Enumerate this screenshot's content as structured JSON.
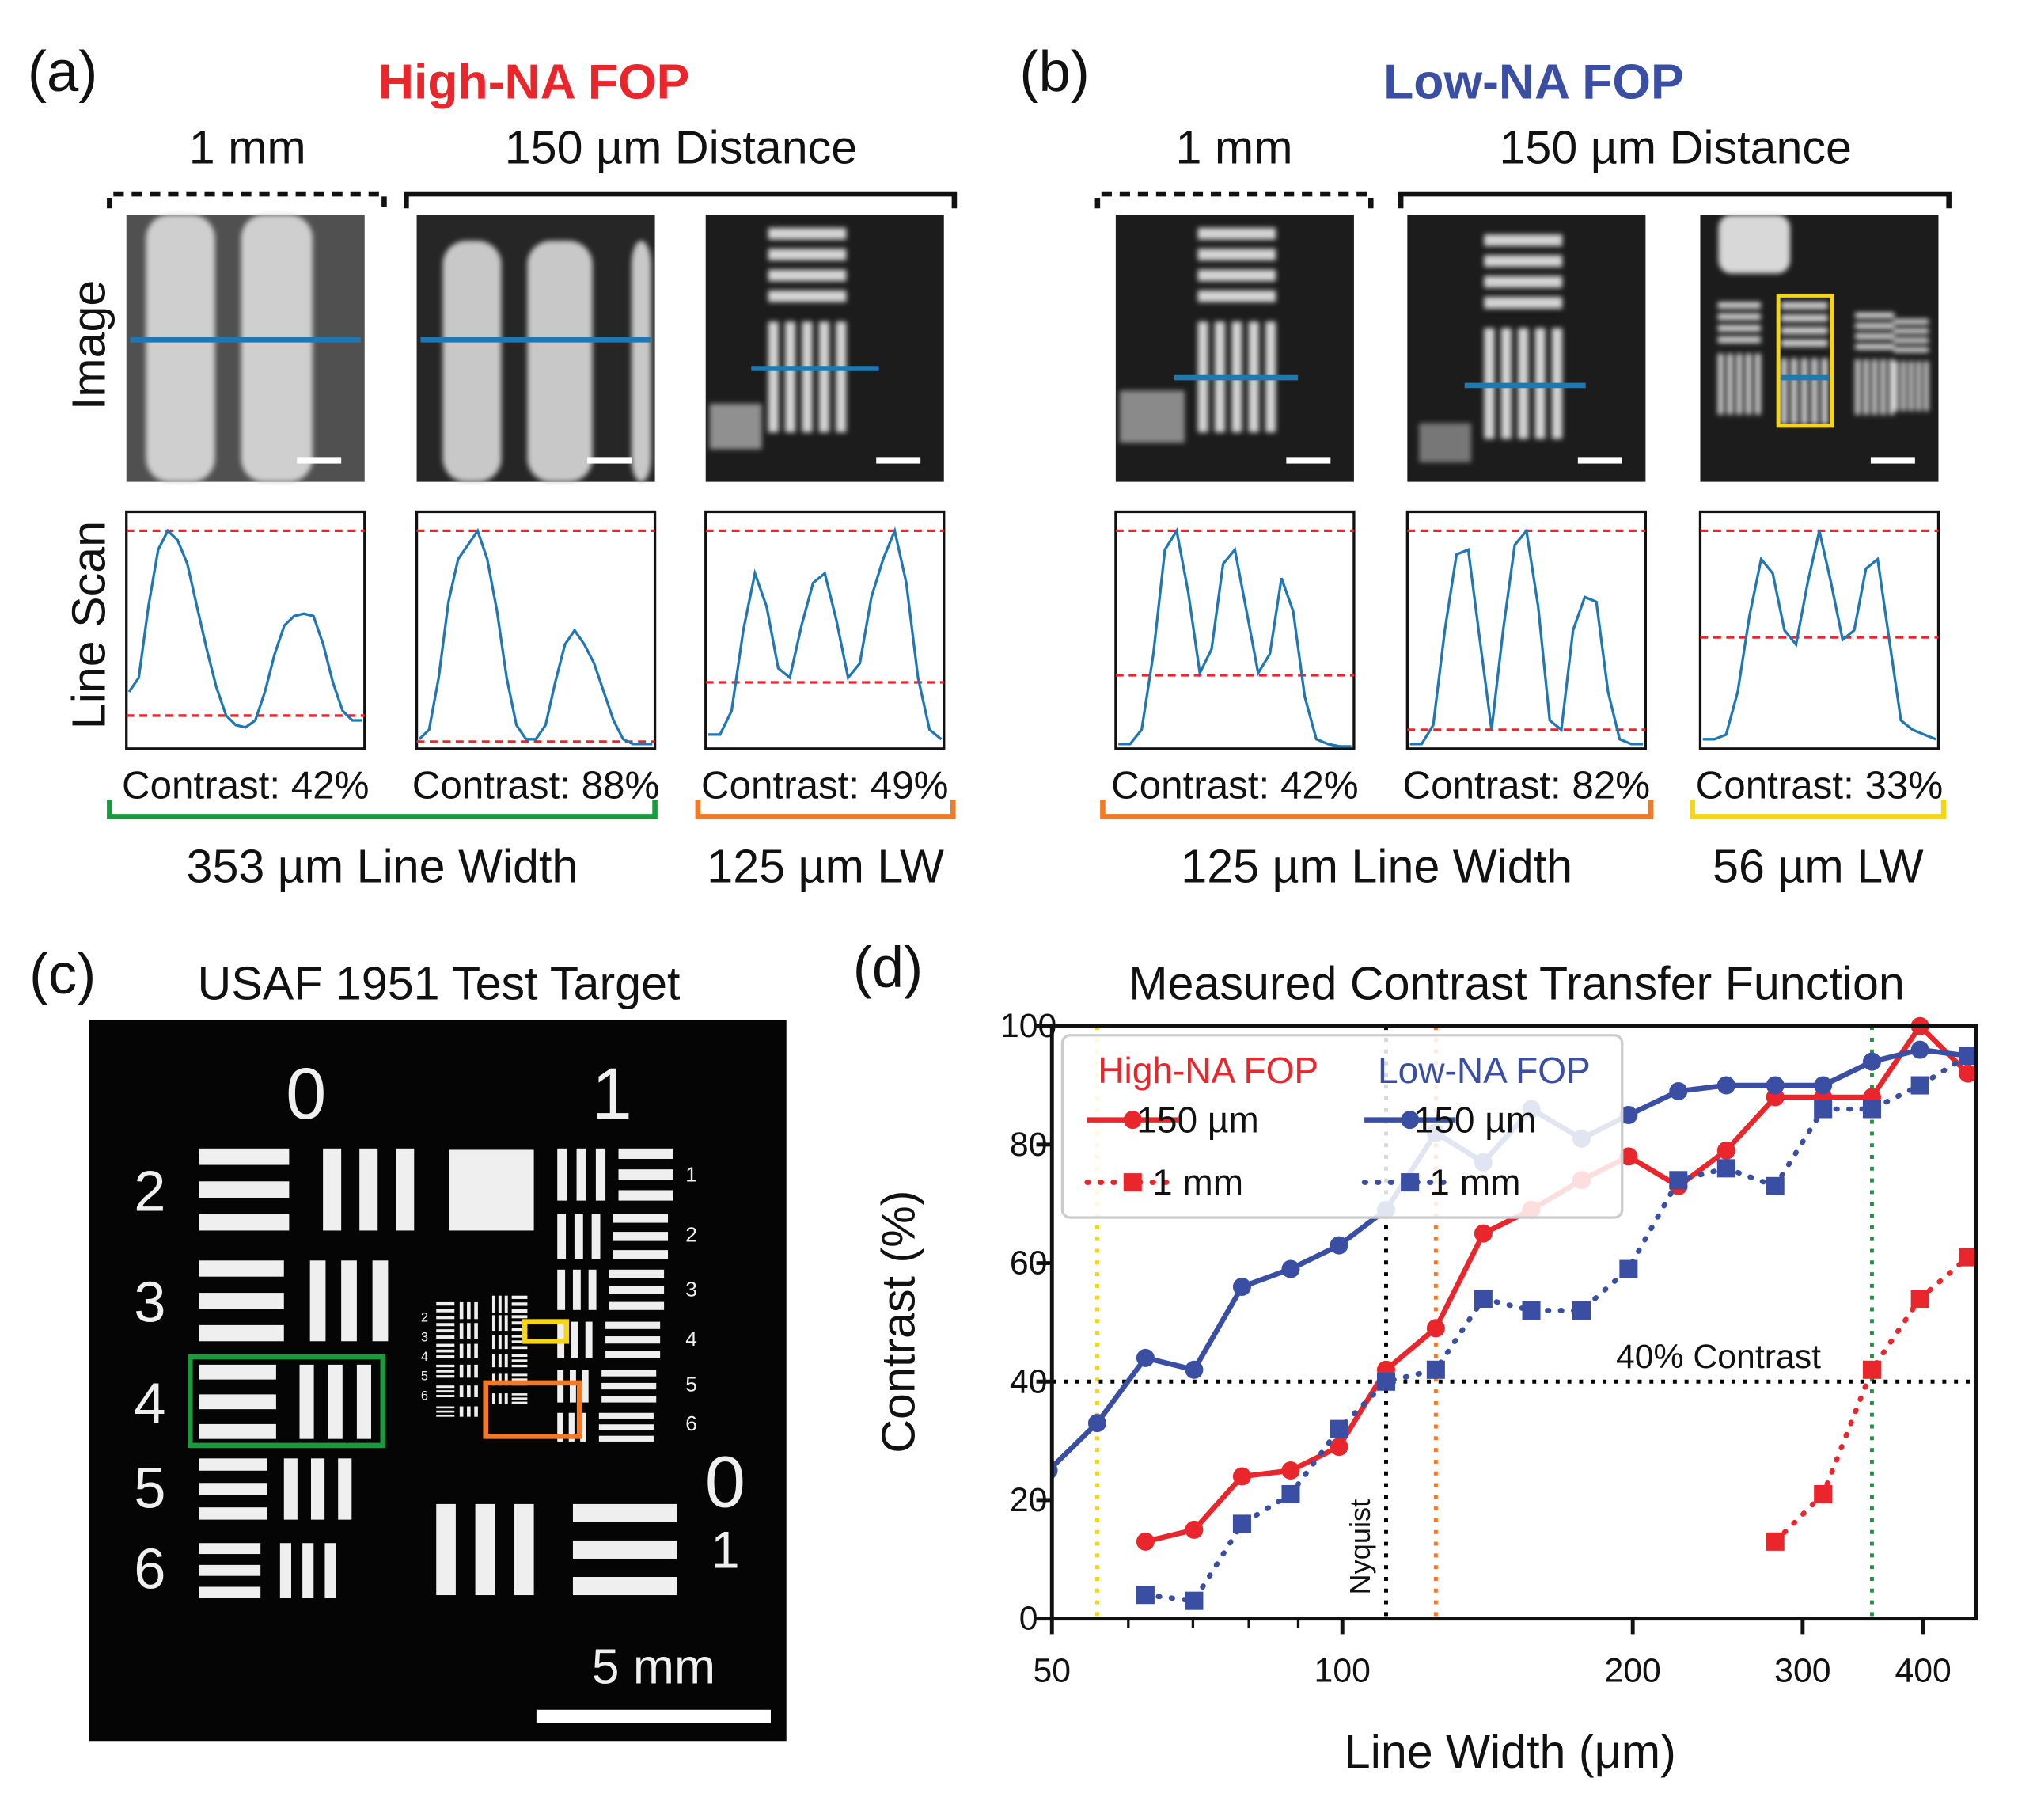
{
  "panels": [
    {
      "label": "(a)",
      "title": "High-NA FOP",
      "color": "#e8262b",
      "distance_labels": [
        "1 mm",
        "150 µm Distance"
      ],
      "row_labels": [
        "Image",
        "Line Scan"
      ],
      "scans": [
        {
          "values": [
            24,
            30,
            60,
            84,
            92,
            88,
            78,
            60,
            42,
            26,
            14,
            10,
            9,
            12,
            24,
            40,
            52,
            56,
            57,
            56,
            44,
            28,
            16,
            12,
            12
          ],
          "max": 92,
          "min": 14,
          "contrast": "Contrast: 42%"
        },
        {
          "values": [
            4,
            8,
            30,
            62,
            80,
            86,
            92,
            80,
            58,
            30,
            10,
            4,
            4,
            10,
            28,
            44,
            50,
            44,
            36,
            24,
            12,
            4,
            2,
            2,
            2
          ],
          "max": 92,
          "min": 3,
          "contrast": "Contrast: 88%"
        },
        {
          "values": [
            6,
            6,
            16,
            50,
            74,
            60,
            34,
            30,
            52,
            70,
            74,
            54,
            30,
            36,
            64,
            80,
            92,
            70,
            30,
            8,
            4
          ],
          "max": 92,
          "min": 28,
          "contrast": "Contrast: 49%"
        }
      ],
      "groups": [
        {
          "label": "353 µm Line Width",
          "color": "#1a9a3c"
        },
        {
          "label": "125 µm LW",
          "color": "#f07a28"
        }
      ]
    },
    {
      "label": "(b)",
      "title": "Low-NA FOP",
      "color": "#3a4fa3",
      "distance_labels": [
        "1 mm",
        "150 µm Distance"
      ],
      "scans": [
        {
          "values": [
            2,
            2,
            8,
            40,
            84,
            92,
            66,
            32,
            42,
            78,
            84,
            58,
            32,
            40,
            72,
            58,
            22,
            4,
            2,
            1,
            1
          ],
          "max": 92,
          "min": 31,
          "contrast": "Contrast: 42%"
        },
        {
          "values": [
            2,
            2,
            10,
            50,
            82,
            84,
            46,
            8,
            50,
            86,
            92,
            60,
            12,
            8,
            50,
            64,
            62,
            24,
            4,
            2,
            2
          ],
          "max": 92,
          "min": 8,
          "contrast": "Contrast: 82%"
        },
        {
          "values": [
            4,
            4,
            6,
            24,
            56,
            80,
            74,
            50,
            44,
            70,
            92,
            70,
            46,
            50,
            76,
            80,
            46,
            12,
            8,
            6,
            4
          ],
          "max": 92,
          "min": 47,
          "contrast": "Contrast: 33%"
        }
      ],
      "groups": [
        {
          "label": "125 µm Line Width",
          "color": "#f07a28"
        },
        {
          "label": "56 µm LW",
          "color": "#f5d518"
        }
      ]
    }
  ],
  "target": {
    "label": "(c)",
    "title": "USAF 1951 Test Target",
    "scale": "5 mm",
    "group_labels": [
      "0",
      "1"
    ],
    "element_labels": [
      "2",
      "3",
      "4",
      "5",
      "6"
    ],
    "right_labels": [
      "1",
      "2",
      "3",
      "4",
      "5",
      "6"
    ],
    "center_labels": [
      "2",
      "3",
      "4",
      "5",
      "6"
    ],
    "bottom_labels": [
      "0",
      "1"
    ]
  },
  "chart_data": {
    "type": "line",
    "label": "(d)",
    "title": "Measured Contrast Transfer Function",
    "xlabel": "Line Width (μm)",
    "ylabel": "Contrast (%)",
    "xscale": "log",
    "xlim": [
      50,
      454
    ],
    "ylim": [
      0,
      100
    ],
    "xticks": [
      50,
      100,
      200,
      300,
      400
    ],
    "xminor": [
      60,
      70,
      80,
      90
    ],
    "yticks": [
      0,
      20,
      40,
      60,
      80,
      100
    ],
    "legend": "upper left",
    "series": [
      {
        "name": "High-NA FOP",
        "color": "#e8262b",
        "lines": [
          {
            "name": "150 µm",
            "dash": "solid",
            "marker": "circle",
            "x": [
              62.5,
              70.2,
              78.7,
              88.4,
              99.2,
              111,
              125,
              140,
              157,
              177,
              198,
              223,
              250,
              281,
              315,
              354,
              397,
              445
            ],
            "values": [
              13,
              15,
              24,
              25,
              29,
              42,
              49,
              65,
              69,
              74,
              78,
              73,
              79,
              88,
              88,
              88,
              100,
              92
            ]
          },
          {
            "name": "1 mm",
            "dash": "dotted",
            "marker": "square",
            "x": [
              281,
              315,
              354,
              397,
              445
            ],
            "values": [
              13,
              21,
              42,
              54,
              61
            ]
          }
        ]
      },
      {
        "name": "Low-NA FOP",
        "color": "#3a4fa3",
        "lines": [
          {
            "name": "150 µm",
            "dash": "solid",
            "marker": "circle",
            "x": [
              49.6,
              55.7,
              62.5,
              70.2,
              78.7,
              88.4,
              99.2,
              111,
              125,
              140,
              157,
              177,
              198,
              223,
              250,
              281,
              315,
              354,
              397,
              445
            ],
            "values": [
              25,
              33,
              44,
              42,
              56,
              59,
              63,
              69,
              82,
              77,
              86,
              81,
              85,
              89,
              90,
              90,
              90,
              94,
              96,
              95
            ]
          },
          {
            "name": "1 mm",
            "dash": "dotted",
            "marker": "square",
            "x": [
              62.5,
              70.2,
              78.7,
              88.4,
              99.2,
              111,
              125,
              140,
              157,
              177,
              198,
              223,
              250,
              281,
              315,
              354,
              397,
              445
            ],
            "values": [
              4,
              3,
              16,
              21,
              32,
              40,
              42,
              54,
              52,
              52,
              59,
              74,
              76,
              73,
              86,
              86,
              90,
              95
            ]
          }
        ]
      }
    ],
    "hline": {
      "value": 40,
      "label": "40% Contrast"
    },
    "vlines": [
      {
        "value": 55.7,
        "color": "#f5d518"
      },
      {
        "value": 111,
        "color": "#000000",
        "label": "Nyquist"
      },
      {
        "value": 125,
        "color": "#f07a28"
      },
      {
        "value": 354,
        "color": "#1a9a3c"
      }
    ]
  }
}
